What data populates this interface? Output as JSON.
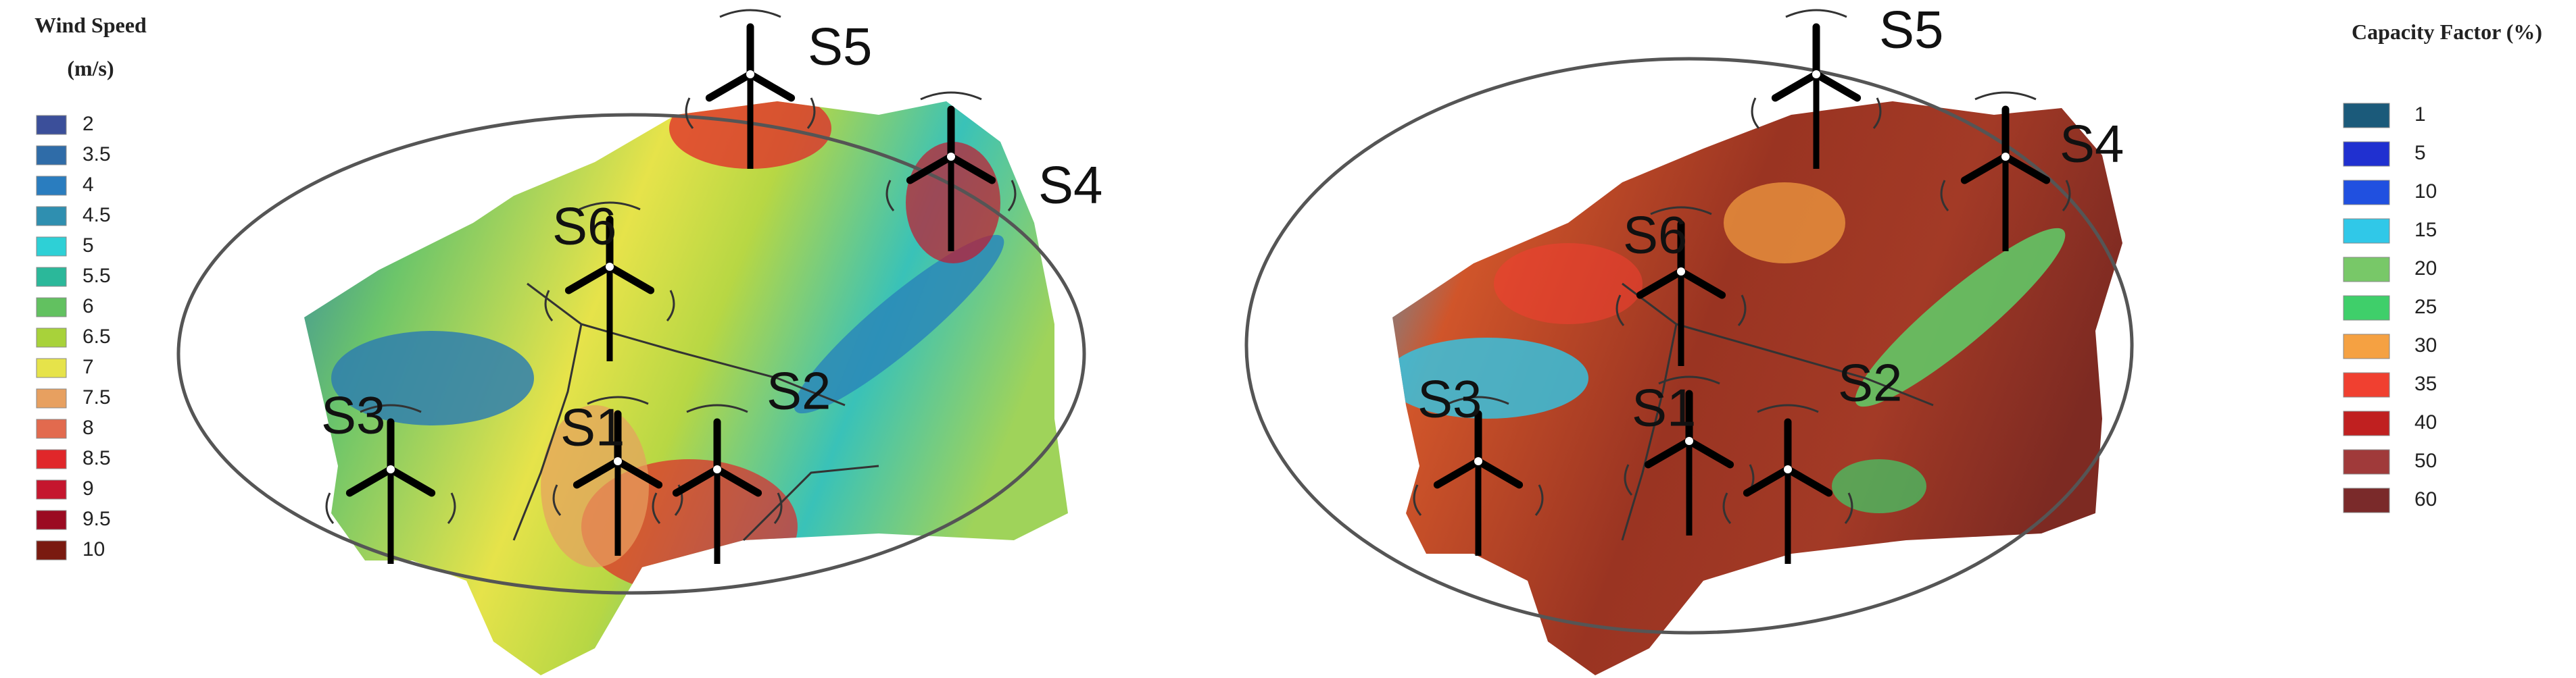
{
  "left_legend": {
    "title": "Wind Speed",
    "unit": "(m/s)",
    "items": [
      {
        "label": "2",
        "color": "#3b4f9a"
      },
      {
        "label": "3.5",
        "color": "#2f6ca8"
      },
      {
        "label": "4",
        "color": "#2a7dbf"
      },
      {
        "label": "4.5",
        "color": "#2f8fb0"
      },
      {
        "label": "5",
        "color": "#2ed0d6"
      },
      {
        "label": "5.5",
        "color": "#2bb89a"
      },
      {
        "label": "6",
        "color": "#62c160"
      },
      {
        "label": "6.5",
        "color": "#a8d23a"
      },
      {
        "label": "7",
        "color": "#e6e34a"
      },
      {
        "label": "7.5",
        "color": "#e7a060"
      },
      {
        "label": "8",
        "color": "#e26a4e"
      },
      {
        "label": "8.5",
        "color": "#e0272a"
      },
      {
        "label": "9",
        "color": "#c5162e"
      },
      {
        "label": "9.5",
        "color": "#9b0a21"
      },
      {
        "label": "10",
        "color": "#7a1a10"
      }
    ]
  },
  "right_legend": {
    "title": "Capacity Factor (%)",
    "items": [
      {
        "label": "1",
        "color": "#1b5a7a"
      },
      {
        "label": "5",
        "color": "#2030d0"
      },
      {
        "label": "10",
        "color": "#2050e0"
      },
      {
        "label": "15",
        "color": "#30c8e8"
      },
      {
        "label": "20",
        "color": "#78c868"
      },
      {
        "label": "25",
        "color": "#3fcf6a"
      },
      {
        "label": "30",
        "color": "#f5a142"
      },
      {
        "label": "35",
        "color": "#f04030"
      },
      {
        "label": "40",
        "color": "#c02020"
      },
      {
        "label": "50",
        "color": "#a03a3a"
      },
      {
        "label": "60",
        "color": "#7a2a2a"
      }
    ]
  },
  "left_map": {
    "sites": [
      "S5",
      "S4",
      "S6",
      "S3",
      "S1",
      "S2"
    ]
  },
  "right_map": {
    "sites": [
      "S5",
      "S4",
      "S6",
      "S3",
      "S1",
      "S2"
    ]
  }
}
